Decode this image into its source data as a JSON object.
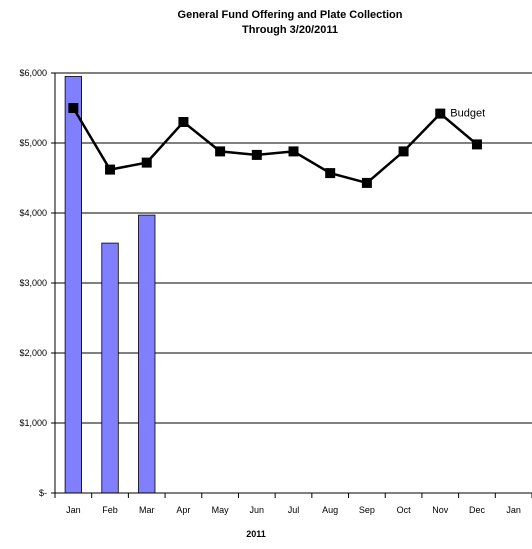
{
  "chart_data": {
    "type": "bar",
    "title": "General Fund Offering and Plate Collection",
    "subtitle": "Through 3/20/2011",
    "xlabel": "2011",
    "ylabel": "",
    "categories": [
      "Jan",
      "Feb",
      "Mar",
      "Apr",
      "May",
      "Jun",
      "Jul",
      "Aug",
      "Sep",
      "Oct",
      "Nov",
      "Dec",
      "Jan"
    ],
    "ylim": [
      0,
      6000
    ],
    "yticks": [
      0,
      1000,
      2000,
      3000,
      4000,
      5000,
      6000
    ],
    "ytick_labels": [
      "$-",
      "$1,000",
      "$2,000",
      "$3,000",
      "$4,000",
      "$5,000",
      "$6,000"
    ],
    "grid": true,
    "series": [
      {
        "type": "bar",
        "color": "#8080ff",
        "values": [
          5950,
          3570,
          3970,
          null,
          null,
          null,
          null,
          null,
          null,
          null,
          null,
          null,
          null
        ]
      },
      {
        "type": "line",
        "name": "Budget",
        "color": "#000000",
        "values": [
          5500,
          4620,
          4720,
          5300,
          4880,
          4830,
          4880,
          4570,
          4430,
          4880,
          5420,
          4980,
          null
        ]
      }
    ],
    "annotations": [
      {
        "text": "Budget",
        "category_index": 10,
        "value": 5420
      }
    ]
  }
}
